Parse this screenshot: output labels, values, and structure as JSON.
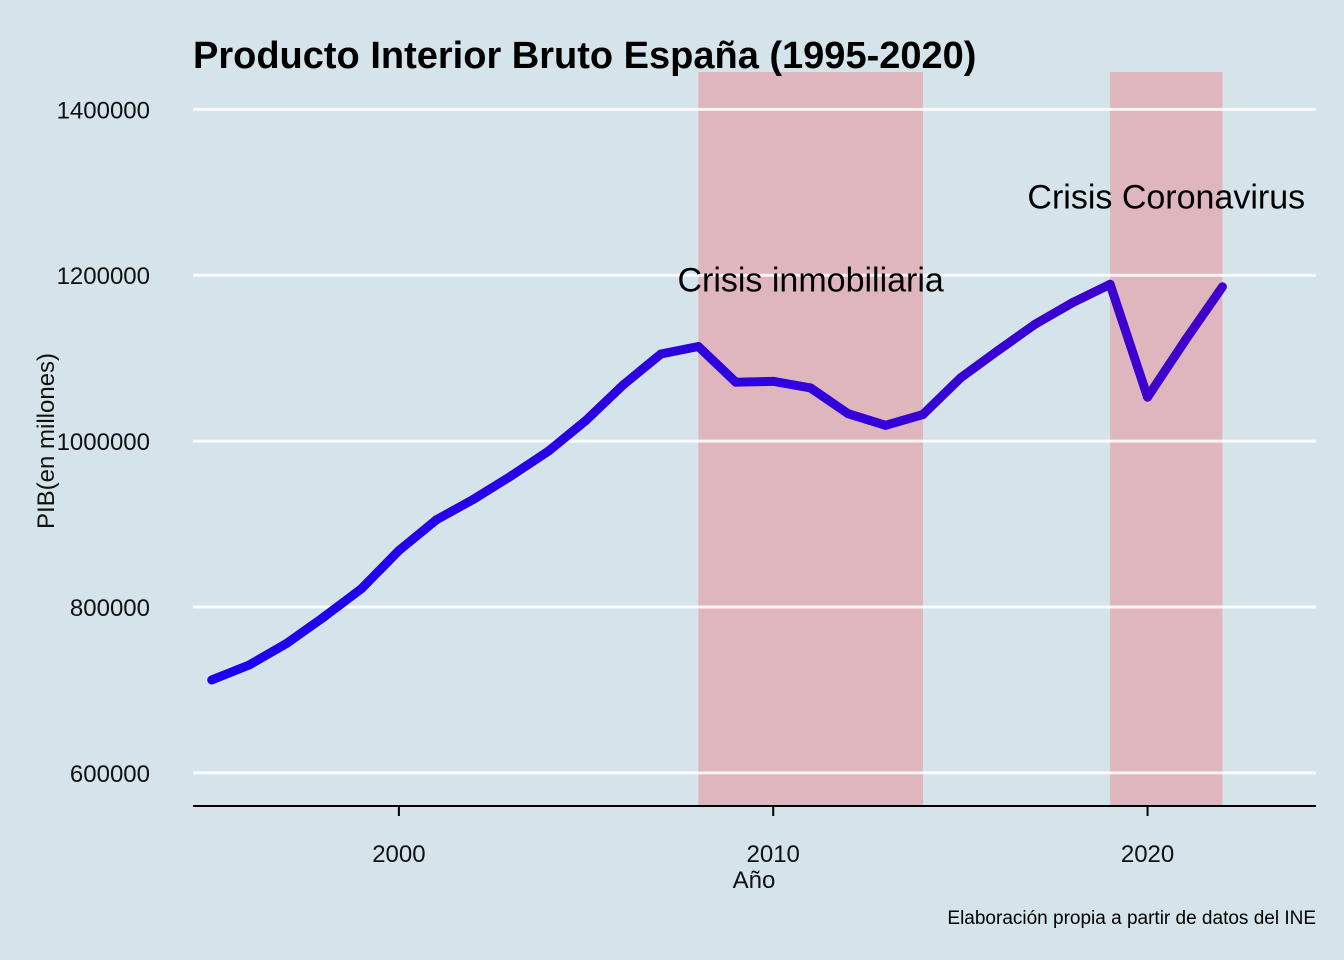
{
  "chart_data": {
    "type": "line",
    "title": "Producto Interior Bruto España (1995-2020)",
    "xlabel": "Año",
    "ylabel": "PIB(en millones)",
    "caption": "Elaboración propia a partir de datos del INE",
    "xlim": [
      1994.5,
      2024.5
    ],
    "ylim": [
      560000,
      1445000
    ],
    "x_ticks": [
      2000,
      2010,
      2020
    ],
    "y_ticks": [
      600000,
      800000,
      1000000,
      1200000,
      1400000
    ],
    "grid": "horizontal",
    "series": [
      {
        "x": [
          1995,
          1996,
          1997,
          1998,
          1999,
          2000,
          2001,
          2002,
          2003,
          2004,
          2005,
          2006,
          2007,
          2008,
          2009,
          2010,
          2011,
          2012,
          2013,
          2014,
          2015,
          2016,
          2017,
          2018,
          2019,
          2020,
          2021,
          2022
        ],
        "values": [
          712000,
          730000,
          756000,
          788000,
          822000,
          868000,
          905000,
          930000,
          958000,
          988000,
          1025000,
          1068000,
          1105000,
          1114000,
          1071000,
          1072000,
          1064000,
          1033000,
          1019000,
          1032000,
          1076000,
          1109000,
          1141000,
          1167000,
          1189000,
          1053000,
          1121000,
          1186000
        ],
        "colors": {
          "start": "#1d00f2",
          "end": "#3f00cc"
        }
      }
    ],
    "shaded_regions": [
      {
        "x_start": 2008,
        "x_end": 2014,
        "label": "Crisis inmobiliaria",
        "label_x": 2011,
        "label_y": 1195000
      },
      {
        "x_start": 2019,
        "x_end": 2022,
        "label": "Crisis Coronavirus",
        "label_x": 2020.5,
        "label_y": 1295000
      }
    ],
    "colors": {
      "background": "#d5e4eb",
      "shade": "#e2a7ae",
      "grid": "#ffffff",
      "axis": "#000000"
    }
  }
}
